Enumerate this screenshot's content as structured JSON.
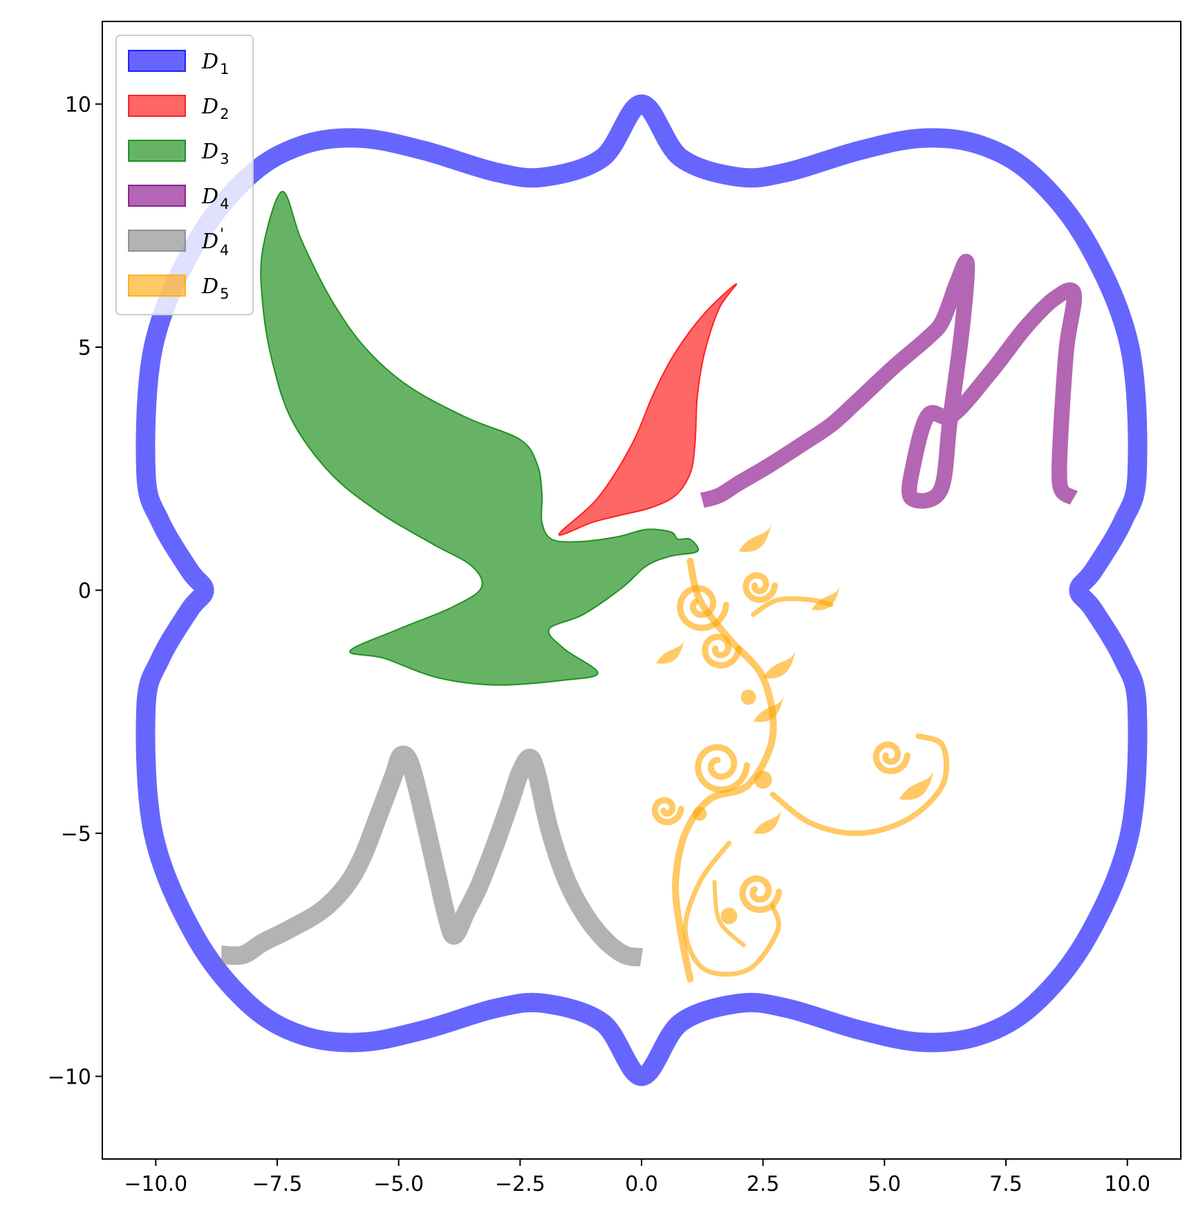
{
  "chart_data": {
    "type": "area",
    "title": "",
    "xlabel": "",
    "ylabel": "",
    "xlim": [
      -11.1,
      11.1
    ],
    "ylim": [
      -11.7,
      11.7
    ],
    "xticks": [
      -10.0,
      -7.5,
      -5.0,
      -2.5,
      0.0,
      2.5,
      5.0,
      7.5,
      10.0
    ],
    "xtick_labels": [
      "−10.0",
      "−7.5",
      "−5.0",
      "−2.5",
      "0.0",
      "2.5",
      "5.0",
      "7.5",
      "10.0"
    ],
    "yticks": [
      10,
      5,
      0,
      -5,
      -10
    ],
    "ytick_labels": [
      "10",
      "5",
      "0",
      "−5",
      "−10"
    ],
    "grid": false,
    "legend_position": "top-left",
    "series": [
      {
        "id": "D1",
        "name": "D",
        "sub": "1",
        "color": "#0000ff",
        "alpha": 0.6,
        "kind": "frame",
        "points": [
          [
            0,
            10.0
          ],
          [
            0.8,
            8.9
          ],
          [
            2,
            8.5
          ],
          [
            3,
            8.6
          ],
          [
            4.5,
            9.05
          ],
          [
            5.8,
            9.3
          ],
          [
            7,
            9.15
          ],
          [
            8.1,
            8.5
          ],
          [
            9.2,
            7.1
          ],
          [
            10.05,
            5.0
          ],
          [
            10.2,
            2.4
          ],
          [
            9.9,
            1.4
          ],
          [
            9.3,
            0.4
          ],
          [
            9.0,
            0.0
          ],
          [
            9.3,
            -0.4
          ],
          [
            9.9,
            -1.4
          ],
          [
            10.2,
            -2.4
          ],
          [
            10.05,
            -5.0
          ],
          [
            9.2,
            -7.1
          ],
          [
            8.1,
            -8.5
          ],
          [
            7,
            -9.15
          ],
          [
            5.8,
            -9.3
          ],
          [
            4.5,
            -9.05
          ],
          [
            3,
            -8.6
          ],
          [
            2,
            -8.5
          ],
          [
            0.8,
            -8.9
          ],
          [
            0,
            -10.0
          ],
          [
            -0.8,
            -8.9
          ],
          [
            -2,
            -8.5
          ],
          [
            -3,
            -8.6
          ],
          [
            -4.5,
            -9.05
          ],
          [
            -5.8,
            -9.3
          ],
          [
            -7,
            -9.15
          ],
          [
            -8.1,
            -8.5
          ],
          [
            -9.2,
            -7.1
          ],
          [
            -10.05,
            -5.0
          ],
          [
            -10.2,
            -2.4
          ],
          [
            -9.9,
            -1.4
          ],
          [
            -9.3,
            -0.4
          ],
          [
            -9.0,
            0.0
          ],
          [
            -9.3,
            0.4
          ],
          [
            -9.9,
            1.4
          ],
          [
            -10.2,
            2.4
          ],
          [
            -10.05,
            5.0
          ],
          [
            -9.2,
            7.1
          ],
          [
            -8.1,
            8.5
          ],
          [
            -7,
            9.15
          ],
          [
            -5.8,
            9.3
          ],
          [
            -4.5,
            9.05
          ],
          [
            -3,
            8.6
          ],
          [
            -2,
            8.5
          ],
          [
            -0.8,
            8.9
          ]
        ]
      },
      {
        "id": "D2",
        "name": "D",
        "sub": "2",
        "color": "#ff0000",
        "alpha": 0.6,
        "kind": "polygon",
        "points": [
          [
            -1.7,
            1.15
          ],
          [
            -0.9,
            1.9
          ],
          [
            -0.2,
            3.0
          ],
          [
            0.25,
            4.05
          ],
          [
            0.7,
            4.9
          ],
          [
            1.3,
            5.7
          ],
          [
            1.95,
            6.3
          ],
          [
            1.6,
            5.8
          ],
          [
            1.3,
            4.9
          ],
          [
            1.15,
            4.0
          ],
          [
            1.1,
            3.0
          ],
          [
            1.0,
            2.4
          ],
          [
            0.7,
            1.95
          ],
          [
            0.2,
            1.7
          ],
          [
            -0.4,
            1.55
          ],
          [
            -1.0,
            1.4
          ]
        ]
      },
      {
        "id": "D3",
        "name": "D",
        "sub": "3",
        "color": "#008000",
        "alpha": 0.6,
        "kind": "polygon",
        "points": [
          [
            -7.4,
            8.2
          ],
          [
            -7.0,
            7.2
          ],
          [
            -6.4,
            6.0
          ],
          [
            -5.7,
            5.0
          ],
          [
            -4.8,
            4.2
          ],
          [
            -3.6,
            3.55
          ],
          [
            -2.5,
            3.1
          ],
          [
            -2.15,
            2.6
          ],
          [
            -2.05,
            2.0
          ],
          [
            -2.05,
            1.4
          ],
          [
            -1.85,
            1.05
          ],
          [
            -1.3,
            1.0
          ],
          [
            -0.5,
            1.1
          ],
          [
            0.1,
            1.25
          ],
          [
            0.6,
            1.2
          ],
          [
            0.75,
            1.05
          ],
          [
            1.0,
            1.05
          ],
          [
            1.15,
            0.8
          ],
          [
            0.6,
            0.7
          ],
          [
            0.1,
            0.5
          ],
          [
            -0.4,
            0.05
          ],
          [
            -1.2,
            -0.5
          ],
          [
            -1.9,
            -0.8
          ],
          [
            -1.6,
            -1.2
          ],
          [
            -0.9,
            -1.7
          ],
          [
            -1.6,
            -1.85
          ],
          [
            -3.0,
            -1.95
          ],
          [
            -4.2,
            -1.8
          ],
          [
            -5.3,
            -1.4
          ],
          [
            -6.0,
            -1.25
          ],
          [
            -5.0,
            -0.8
          ],
          [
            -3.9,
            -0.35
          ],
          [
            -3.3,
            0.05
          ],
          [
            -3.5,
            0.5
          ],
          [
            -4.3,
            0.95
          ],
          [
            -5.4,
            1.6
          ],
          [
            -6.4,
            2.4
          ],
          [
            -7.2,
            3.5
          ],
          [
            -7.6,
            4.7
          ],
          [
            -7.8,
            5.9
          ],
          [
            -7.8,
            7.0
          ]
        ]
      },
      {
        "id": "D4",
        "name": "D",
        "sub": "4",
        "color": "#800080",
        "alpha": 0.6,
        "kind": "stroke",
        "width": 0.32,
        "points": [
          [
            1.25,
            1.85
          ],
          [
            1.6,
            1.95
          ],
          [
            2.0,
            2.2
          ],
          [
            2.6,
            2.55
          ],
          [
            3.3,
            3.0
          ],
          [
            3.9,
            3.4
          ],
          [
            4.4,
            3.85
          ],
          [
            5.2,
            4.6
          ],
          [
            5.9,
            5.2
          ],
          [
            6.2,
            5.55
          ],
          [
            6.5,
            6.35
          ],
          [
            6.7,
            6.72
          ],
          [
            6.6,
            5.4
          ],
          [
            6.35,
            3.5
          ],
          [
            6.15,
            2.05
          ],
          [
            5.55,
            1.9
          ],
          [
            5.6,
            2.6
          ],
          [
            5.9,
            3.6
          ],
          [
            6.4,
            3.6
          ],
          [
            7.2,
            4.5
          ],
          [
            7.9,
            5.4
          ],
          [
            8.5,
            6.0
          ],
          [
            8.9,
            6.1
          ],
          [
            8.75,
            5.0
          ],
          [
            8.65,
            3.6
          ],
          [
            8.6,
            2.5
          ],
          [
            8.65,
            2.05
          ],
          [
            8.9,
            1.9
          ]
        ]
      },
      {
        "id": "D4p",
        "name": "D",
        "sub": "4",
        "prime": "'",
        "color": "#808080",
        "alpha": 0.6,
        "kind": "stroke",
        "width": 0.38,
        "points": [
          [
            -8.65,
            -7.5
          ],
          [
            -8.2,
            -7.5
          ],
          [
            -7.8,
            -7.25
          ],
          [
            -7.3,
            -7.0
          ],
          [
            -6.6,
            -6.6
          ],
          [
            -6.1,
            -6.1
          ],
          [
            -5.75,
            -5.5
          ],
          [
            -5.4,
            -4.6
          ],
          [
            -5.1,
            -3.8
          ],
          [
            -4.95,
            -3.4
          ],
          [
            -4.75,
            -3.6
          ],
          [
            -4.45,
            -4.8
          ],
          [
            -4.2,
            -5.9
          ],
          [
            -4.0,
            -6.75
          ],
          [
            -3.85,
            -7.1
          ],
          [
            -3.6,
            -6.6
          ],
          [
            -3.35,
            -6.1
          ],
          [
            -3.0,
            -5.2
          ],
          [
            -2.7,
            -4.35
          ],
          [
            -2.5,
            -3.75
          ],
          [
            -2.3,
            -3.45
          ],
          [
            -2.15,
            -3.8
          ],
          [
            -1.9,
            -4.9
          ],
          [
            -1.55,
            -5.95
          ],
          [
            -1.15,
            -6.7
          ],
          [
            -0.75,
            -7.2
          ],
          [
            -0.35,
            -7.5
          ],
          [
            0.0,
            -7.55
          ]
        ]
      },
      {
        "id": "D5",
        "name": "D",
        "sub": "5",
        "color": "#ffa500",
        "alpha": 0.6,
        "kind": "ornament"
      }
    ]
  }
}
